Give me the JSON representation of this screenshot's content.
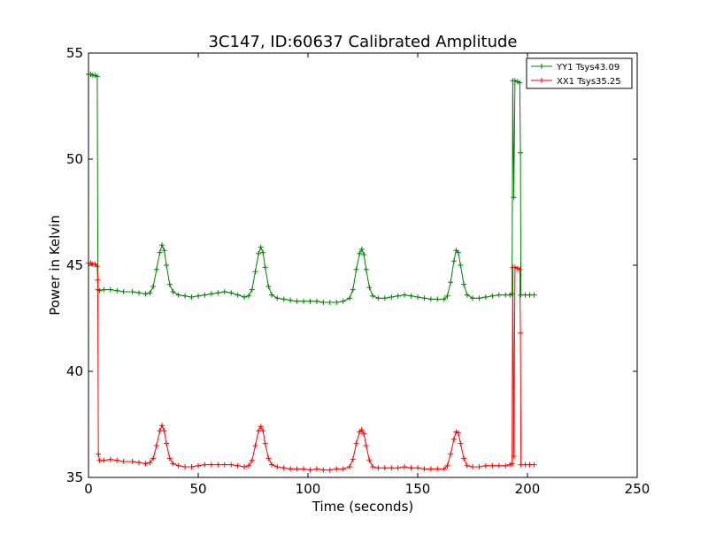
{
  "chart_data": {
    "type": "line",
    "title": "3C147, ID:60637 Calibrated Amplitude",
    "xlabel": "Time (seconds)",
    "ylabel": "Power in Kelvin",
    "xlim": [
      0,
      250
    ],
    "ylim": [
      35,
      55
    ],
    "xticks": [
      "0",
      "50",
      "100",
      "150",
      "200",
      "250"
    ],
    "yticks": [
      "35",
      "40",
      "45",
      "50",
      "55"
    ],
    "legend_placement": "top-right",
    "grid": false,
    "series": [
      {
        "name": "YY1 Tsys43.09",
        "color": "#008000",
        "points": [
          [
            0,
            54.0
          ],
          [
            1,
            54.0
          ],
          [
            2,
            53.95
          ],
          [
            3,
            53.95
          ],
          [
            4,
            53.9
          ],
          [
            4.3,
            43.85
          ],
          [
            5,
            43.8
          ],
          [
            7,
            43.85
          ],
          [
            10,
            43.85
          ],
          [
            13,
            43.8
          ],
          [
            16,
            43.75
          ],
          [
            20,
            43.75
          ],
          [
            23,
            43.7
          ],
          [
            26,
            43.65
          ],
          [
            28,
            43.7
          ],
          [
            29.5,
            44.0
          ],
          [
            31,
            44.8
          ],
          [
            32.5,
            45.6
          ],
          [
            33.5,
            45.95
          ],
          [
            34.5,
            45.7
          ],
          [
            35.5,
            45.0
          ],
          [
            37,
            44.1
          ],
          [
            38.5,
            43.75
          ],
          [
            41,
            43.6
          ],
          [
            44,
            43.55
          ],
          [
            47,
            43.5
          ],
          [
            50,
            43.55
          ],
          [
            53,
            43.6
          ],
          [
            56,
            43.65
          ],
          [
            59,
            43.7
          ],
          [
            62,
            43.75
          ],
          [
            65,
            43.7
          ],
          [
            68,
            43.6
          ],
          [
            71,
            43.5
          ],
          [
            73,
            43.55
          ],
          [
            74.5,
            43.85
          ],
          [
            76,
            44.7
          ],
          [
            77.5,
            45.55
          ],
          [
            78.5,
            45.85
          ],
          [
            79.5,
            45.6
          ],
          [
            80.5,
            44.9
          ],
          [
            82,
            44.0
          ],
          [
            83.5,
            43.6
          ],
          [
            86,
            43.45
          ],
          [
            89,
            43.4
          ],
          [
            92,
            43.35
          ],
          [
            95,
            43.3
          ],
          [
            98,
            43.3
          ],
          [
            101,
            43.3
          ],
          [
            104,
            43.3
          ],
          [
            107,
            43.25
          ],
          [
            110,
            43.25
          ],
          [
            113,
            43.25
          ],
          [
            116,
            43.3
          ],
          [
            119,
            43.45
          ],
          [
            120.5,
            43.85
          ],
          [
            122,
            44.8
          ],
          [
            123.5,
            45.55
          ],
          [
            124.5,
            45.75
          ],
          [
            125.5,
            45.5
          ],
          [
            126.5,
            44.8
          ],
          [
            128,
            43.95
          ],
          [
            129.5,
            43.55
          ],
          [
            132,
            43.45
          ],
          [
            135,
            43.45
          ],
          [
            138,
            43.5
          ],
          [
            141,
            43.55
          ],
          [
            144,
            43.6
          ],
          [
            147,
            43.55
          ],
          [
            150,
            43.5
          ],
          [
            153,
            43.45
          ],
          [
            156,
            43.4
          ],
          [
            159,
            43.4
          ],
          [
            162,
            43.4
          ],
          [
            163.5,
            43.55
          ],
          [
            165,
            44.2
          ],
          [
            166.5,
            45.2
          ],
          [
            167.5,
            45.7
          ],
          [
            168.5,
            45.6
          ],
          [
            169.5,
            45.0
          ],
          [
            171,
            44.1
          ],
          [
            172.5,
            43.6
          ],
          [
            175,
            43.45
          ],
          [
            178,
            43.45
          ],
          [
            181,
            43.5
          ],
          [
            184,
            43.55
          ],
          [
            187,
            43.6
          ],
          [
            190,
            43.6
          ],
          [
            192,
            43.6
          ],
          [
            193,
            43.65
          ],
          [
            193.3,
            53.7
          ],
          [
            193.8,
            48.2
          ],
          [
            194.3,
            53.7
          ],
          [
            195.5,
            53.65
          ],
          [
            196.5,
            53.6
          ],
          [
            196.8,
            50.3
          ],
          [
            197,
            43.6
          ],
          [
            199,
            43.6
          ],
          [
            201,
            43.6
          ],
          [
            203,
            43.6
          ]
        ]
      },
      {
        "name": "XX1 Tsys35.25",
        "color": "#ff0000",
        "points": [
          [
            0,
            45.1
          ],
          [
            1,
            45.1
          ],
          [
            2,
            45.05
          ],
          [
            3,
            45.05
          ],
          [
            4,
            44.95
          ],
          [
            4.2,
            44.3
          ],
          [
            4.5,
            36.1
          ],
          [
            5,
            35.8
          ],
          [
            7,
            35.8
          ],
          [
            10,
            35.85
          ],
          [
            13,
            35.8
          ],
          [
            16,
            35.75
          ],
          [
            20,
            35.75
          ],
          [
            23,
            35.7
          ],
          [
            26,
            35.65
          ],
          [
            28,
            35.7
          ],
          [
            29.5,
            35.9
          ],
          [
            31,
            36.5
          ],
          [
            32.5,
            37.2
          ],
          [
            33.5,
            37.45
          ],
          [
            34.5,
            37.2
          ],
          [
            35.5,
            36.6
          ],
          [
            37,
            35.9
          ],
          [
            38.5,
            35.65
          ],
          [
            41,
            35.55
          ],
          [
            44,
            35.5
          ],
          [
            47,
            35.5
          ],
          [
            50,
            35.55
          ],
          [
            53,
            35.6
          ],
          [
            56,
            35.6
          ],
          [
            59,
            35.6
          ],
          [
            62,
            35.6
          ],
          [
            65,
            35.6
          ],
          [
            68,
            35.55
          ],
          [
            71,
            35.5
          ],
          [
            73,
            35.55
          ],
          [
            74.5,
            35.8
          ],
          [
            76,
            36.5
          ],
          [
            77.5,
            37.2
          ],
          [
            78.5,
            37.4
          ],
          [
            79.5,
            37.2
          ],
          [
            80.5,
            36.6
          ],
          [
            82,
            35.9
          ],
          [
            83.5,
            35.6
          ],
          [
            86,
            35.5
          ],
          [
            89,
            35.45
          ],
          [
            92,
            35.4
          ],
          [
            95,
            35.4
          ],
          [
            98,
            35.4
          ],
          [
            101,
            35.35
          ],
          [
            104,
            35.4
          ],
          [
            107,
            35.35
          ],
          [
            110,
            35.35
          ],
          [
            113,
            35.4
          ],
          [
            116,
            35.4
          ],
          [
            119,
            35.5
          ],
          [
            120.5,
            35.85
          ],
          [
            122,
            36.6
          ],
          [
            123.5,
            37.15
          ],
          [
            124.5,
            37.25
          ],
          [
            125.5,
            37.05
          ],
          [
            126.5,
            36.5
          ],
          [
            128,
            35.8
          ],
          [
            129.5,
            35.5
          ],
          [
            132,
            35.45
          ],
          [
            135,
            35.45
          ],
          [
            138,
            35.45
          ],
          [
            141,
            35.45
          ],
          [
            144,
            35.5
          ],
          [
            147,
            35.45
          ],
          [
            150,
            35.45
          ],
          [
            153,
            35.4
          ],
          [
            156,
            35.4
          ],
          [
            159,
            35.4
          ],
          [
            162,
            35.4
          ],
          [
            163.5,
            35.55
          ],
          [
            165,
            36.1
          ],
          [
            166.5,
            36.8
          ],
          [
            167.5,
            37.15
          ],
          [
            168.5,
            37.1
          ],
          [
            169.5,
            36.6
          ],
          [
            171,
            35.9
          ],
          [
            172.5,
            35.55
          ],
          [
            175,
            35.5
          ],
          [
            178,
            35.5
          ],
          [
            181,
            35.55
          ],
          [
            184,
            35.55
          ],
          [
            187,
            35.55
          ],
          [
            190,
            35.55
          ],
          [
            192,
            35.6
          ],
          [
            193,
            35.65
          ],
          [
            193.3,
            44.9
          ],
          [
            193.8,
            36.0
          ],
          [
            194.3,
            44.9
          ],
          [
            195.5,
            44.85
          ],
          [
            196.5,
            44.8
          ],
          [
            196.8,
            41.8
          ],
          [
            197,
            35.6
          ],
          [
            199,
            35.6
          ],
          [
            201,
            35.6
          ],
          [
            203,
            35.6
          ]
        ]
      }
    ]
  }
}
